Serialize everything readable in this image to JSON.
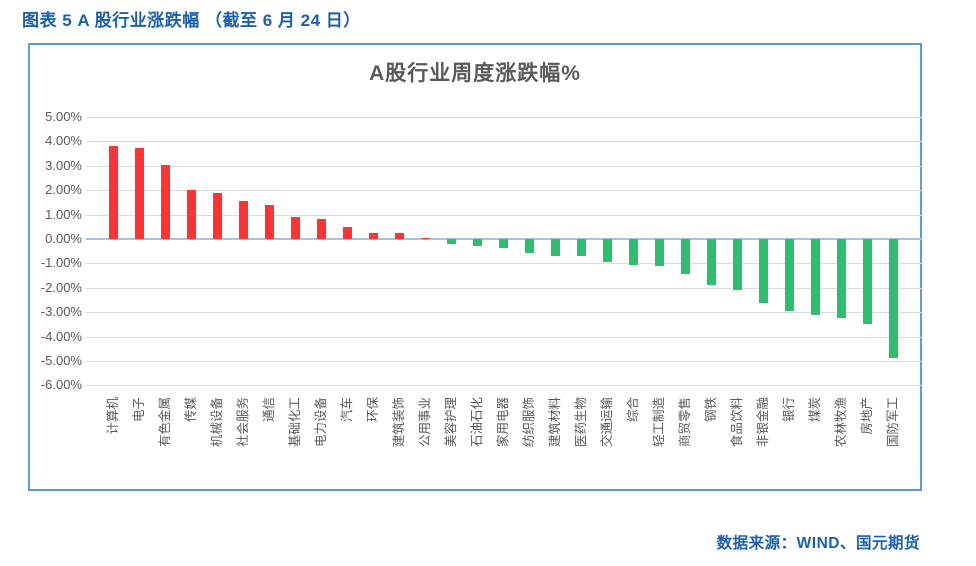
{
  "page": {
    "caption": "图表 5 A 股行业涨跌幅 （截至 6 月 24 日）",
    "source": "数据来源：WIND、国元期货"
  },
  "colors": {
    "caption_blue": "#1B5FB0",
    "positive_bar": "#FF3333",
    "negative_bar": "#2FBE70",
    "chart_border": "#5B9BD5",
    "zero_axis": "#A9C1DC",
    "gridline": "#DCDCDC",
    "chart_text_gray": "#595959"
  },
  "chart_data": {
    "type": "bar",
    "title": "A股行业周度涨跌幅%",
    "categories": [
      "计算机",
      "电子",
      "有色金属",
      "传媒",
      "机械设备",
      "社会服务",
      "通信",
      "基础化工",
      "电力设备",
      "汽车",
      "环保",
      "建筑装饰",
      "公用事业",
      "美容护理",
      "石油石化",
      "家用电器",
      "纺织服饰",
      "建筑材料",
      "医药生物",
      "交通运输",
      "综合",
      "轻工制造",
      "商贸零售",
      "钢铁",
      "食品饮料",
      "非银金融",
      "银行",
      "煤炭",
      "农林牧渔",
      "房地产",
      "国防军工"
    ],
    "values": [
      3.8,
      3.74,
      3.02,
      2.02,
      1.9,
      1.55,
      1.4,
      0.92,
      0.8,
      0.5,
      0.26,
      0.25,
      0.05,
      -0.19,
      -0.28,
      -0.36,
      -0.56,
      -0.68,
      -0.7,
      -0.93,
      -1.06,
      -1.12,
      -1.44,
      -1.87,
      -2.08,
      -2.63,
      -2.97,
      -3.11,
      -3.25,
      -3.5,
      -4.87
    ],
    "y_ticks": [
      "5.00%",
      "4.00%",
      "3.00%",
      "2.00%",
      "1.00%",
      "0.00%",
      "-1.00%",
      "-2.00%",
      "-3.00%",
      "-4.00%",
      "-5.00%",
      "-6.00%"
    ],
    "ylim": [
      -6,
      5
    ],
    "grid": true,
    "legend": "none",
    "xlabel": "",
    "ylabel": ""
  }
}
